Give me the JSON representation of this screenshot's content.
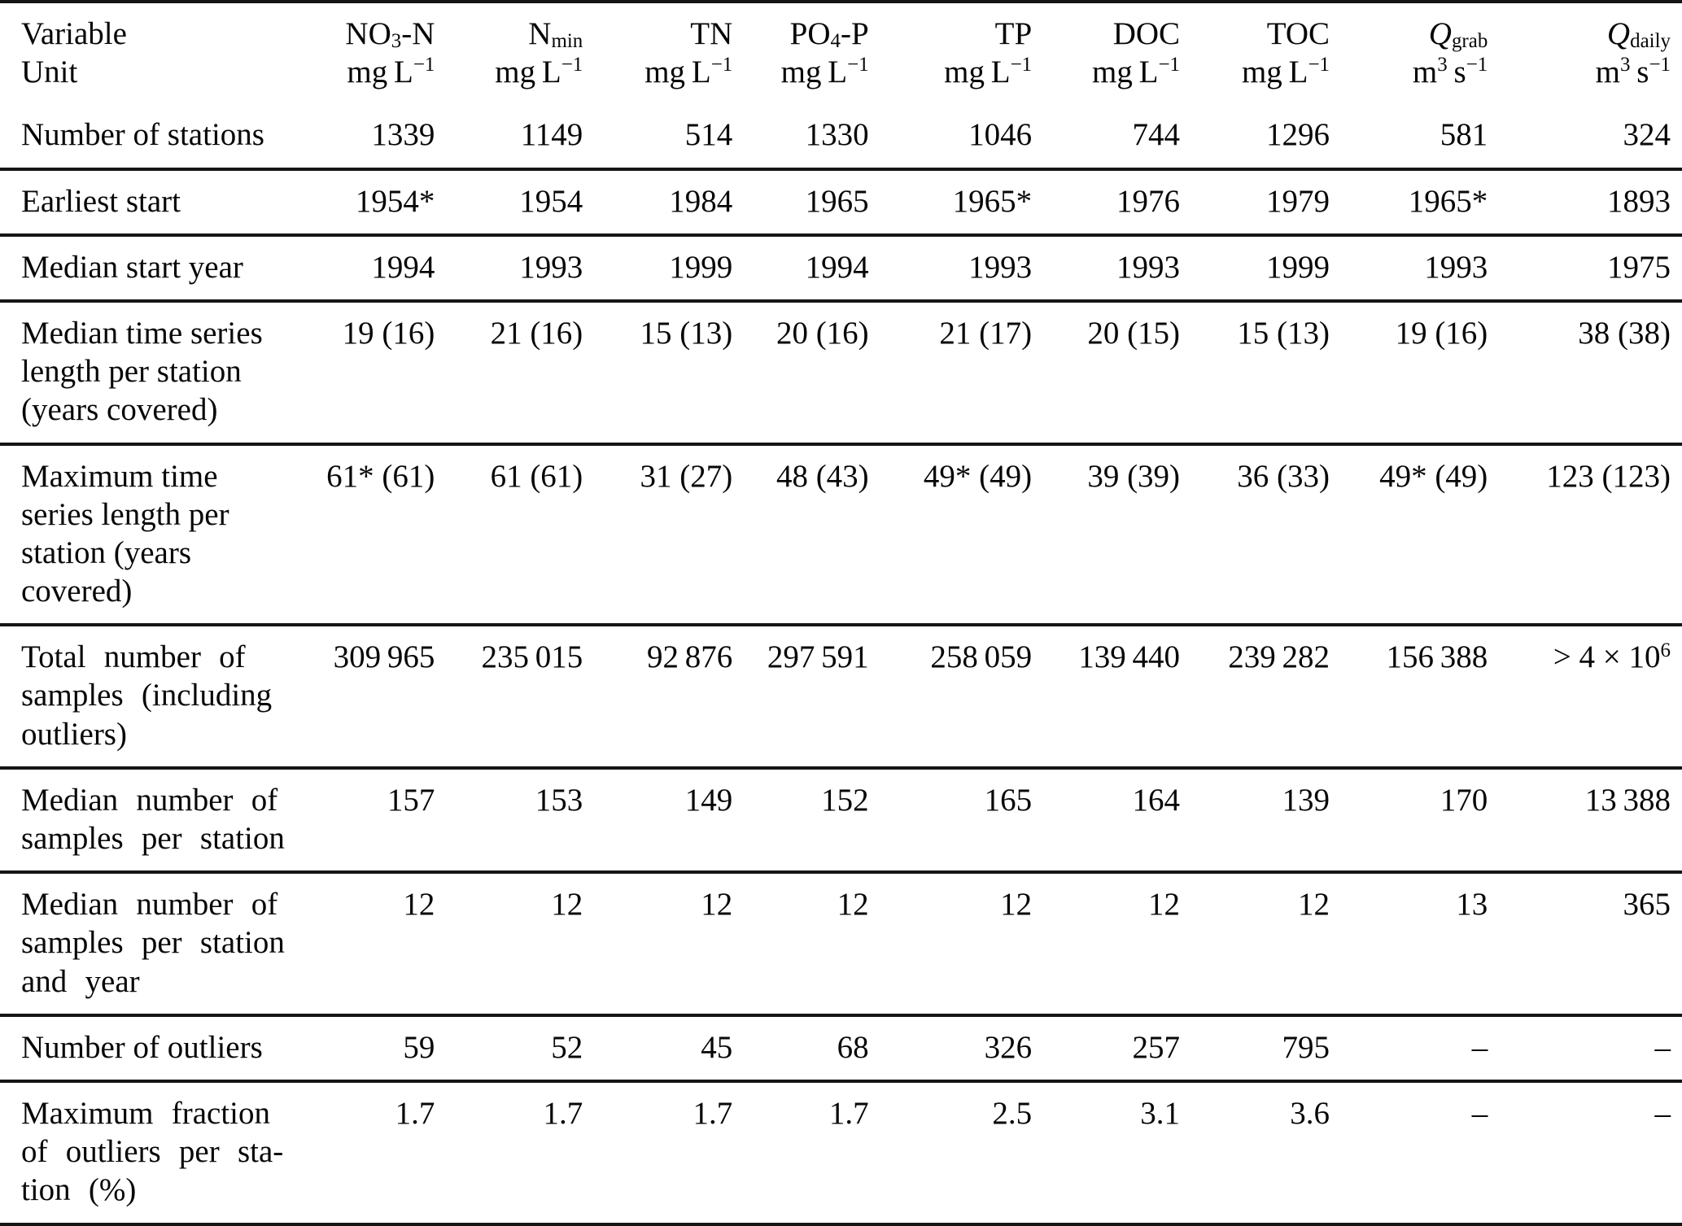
{
  "colors": {
    "background": "#ffffff",
    "text": "#070707",
    "rule": "#151515"
  },
  "table": {
    "header": {
      "col1_lines": [
        "Variable",
        "Unit"
      ],
      "columns": [
        {
          "id": "NO3-N",
          "name_parts": [
            {
              "t": "NO"
            },
            {
              "t": "3",
              "sub": true
            },
            {
              "t": "-N"
            }
          ],
          "unit_parts": [
            {
              "t": "mg L"
            },
            {
              "t": "−1",
              "sup": true
            }
          ]
        },
        {
          "id": "Nmin",
          "name_parts": [
            {
              "t": "N"
            },
            {
              "t": "min",
              "sub": true
            }
          ],
          "unit_parts": [
            {
              "t": "mg L"
            },
            {
              "t": "−1",
              "sup": true
            }
          ]
        },
        {
          "id": "TN",
          "name_parts": [
            {
              "t": "TN"
            }
          ],
          "unit_parts": [
            {
              "t": "mg L"
            },
            {
              "t": "−1",
              "sup": true
            }
          ]
        },
        {
          "id": "PO4-P",
          "name_parts": [
            {
              "t": "PO"
            },
            {
              "t": "4",
              "sub": true
            },
            {
              "t": "-P"
            }
          ],
          "unit_parts": [
            {
              "t": "mg L"
            },
            {
              "t": "−1",
              "sup": true
            }
          ]
        },
        {
          "id": "TP",
          "name_parts": [
            {
              "t": "TP"
            }
          ],
          "unit_parts": [
            {
              "t": "mg L"
            },
            {
              "t": "−1",
              "sup": true
            }
          ]
        },
        {
          "id": "DOC",
          "name_parts": [
            {
              "t": "DOC"
            }
          ],
          "unit_parts": [
            {
              "t": "mg L"
            },
            {
              "t": "−1",
              "sup": true
            }
          ]
        },
        {
          "id": "TOC",
          "name_parts": [
            {
              "t": "TOC"
            }
          ],
          "unit_parts": [
            {
              "t": "mg L"
            },
            {
              "t": "−1",
              "sup": true
            }
          ]
        },
        {
          "id": "Qgrab",
          "name_parts": [
            {
              "t": "Q",
              "italic": true
            },
            {
              "t": "grab",
              "sub": true
            }
          ],
          "unit_parts": [
            {
              "t": "m"
            },
            {
              "t": "3",
              "sup": true
            },
            {
              "t": " s"
            },
            {
              "t": "−1",
              "sup": true
            }
          ]
        },
        {
          "id": "Qdaily",
          "name_parts": [
            {
              "t": "Q",
              "italic": true
            },
            {
              "t": "daily",
              "sub": true
            }
          ],
          "unit_parts": [
            {
              "t": "m"
            },
            {
              "t": "3",
              "sup": true
            },
            {
              "t": " s"
            },
            {
              "t": "−1",
              "sup": true
            }
          ]
        }
      ]
    },
    "rows": [
      {
        "label_lines": [
          "Number of stations"
        ],
        "values": [
          "1339",
          "1149",
          "514",
          "1330",
          "1046",
          "744",
          "1296",
          "581",
          "324"
        ]
      },
      {
        "label_lines": [
          "Earliest start"
        ],
        "values": [
          "1954*",
          "1954",
          "1984",
          "1965",
          "1965*",
          "1976",
          "1979",
          "1965*",
          "1893"
        ]
      },
      {
        "label_lines": [
          "Median start year"
        ],
        "values": [
          "1994",
          "1993",
          "1999",
          "1994",
          "1993",
          "1993",
          "1999",
          "1993",
          "1975"
        ]
      },
      {
        "label_lines": [
          "Median time series",
          "length per station",
          "(years covered)"
        ],
        "values": [
          "19 (16)",
          "21 (16)",
          "15 (13)",
          "20 (16)",
          "21 (17)",
          "20 (15)",
          "15 (13)",
          "19 (16)",
          "38 (38)"
        ]
      },
      {
        "label_lines": [
          "Maximum time",
          "series length per",
          "station (years",
          "covered)"
        ],
        "values": [
          "61* (61)",
          "61 (61)",
          "31 (27)",
          "48 (43)",
          "49* (49)",
          "39 (39)",
          "36 (33)",
          "49* (49)",
          "123 (123)"
        ]
      },
      {
        "label_lines": [
          "Total number of",
          "samples (including",
          "outliers)"
        ],
        "wide_spacing": true,
        "values": [
          "309 965",
          "235 015",
          "92 876",
          "297 591",
          "258 059",
          "139 440",
          "239 282",
          "156 388",
          [
            {
              "t": "> 4 × 10"
            },
            {
              "t": "6",
              "sup": true
            }
          ]
        ]
      },
      {
        "label_lines": [
          "Median number of",
          "samples per station"
        ],
        "wide_spacing": true,
        "values": [
          "157",
          "153",
          "149",
          "152",
          "165",
          "164",
          "139",
          "170",
          "13 388"
        ]
      },
      {
        "label_lines": [
          "Median number of",
          "samples per station",
          "and year"
        ],
        "wide_spacing": true,
        "values": [
          "12",
          "12",
          "12",
          "12",
          "12",
          "12",
          "12",
          "13",
          "365"
        ]
      },
      {
        "label_lines": [
          "Number of outliers"
        ],
        "values": [
          "59",
          "52",
          "45",
          "68",
          "326",
          "257",
          "795",
          "–",
          "–"
        ]
      },
      {
        "label_lines": [
          "Maximum fraction",
          "of outliers per sta-",
          "tion (%)"
        ],
        "wide_spacing": true,
        "values": [
          "1.7",
          "1.7",
          "1.7",
          "1.7",
          "2.5",
          "3.1",
          "3.6",
          "–",
          "–"
        ]
      }
    ]
  }
}
